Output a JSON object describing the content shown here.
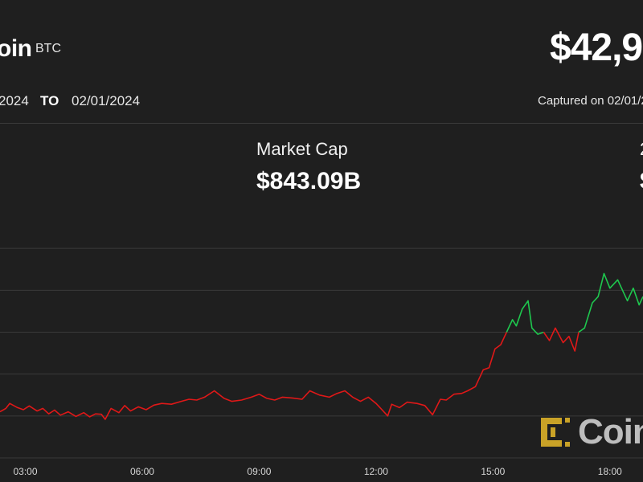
{
  "header": {
    "brand": "oin",
    "ticker": "BTC",
    "price": "$42,9",
    "range_from": "2024",
    "range_to_label": "TO",
    "range_to": "02/01/2024",
    "captured": "Captured on 02/01/2"
  },
  "stats": {
    "market_cap_label": "Market Cap",
    "market_cap_value": "$843.09B",
    "stat2_label": "2",
    "stat2_value": "$"
  },
  "watermark": {
    "text": "Coin"
  },
  "colors": {
    "up": "#1ec74e",
    "down": "#e01818",
    "grid": "#3a3a3a",
    "background": "#1f1f1f",
    "watermark_accent": "#c9a227"
  },
  "chart_data": {
    "type": "line",
    "x_ticks": [
      "03:00",
      "06:00",
      "09:00",
      "12:00",
      "15:00",
      "18:00"
    ],
    "x_tick_hours": [
      3,
      6,
      9,
      12,
      15,
      18
    ],
    "xlim_hours": [
      2.35,
      18.85
    ],
    "ylim": [
      0,
      6
    ],
    "y_gridlines": [
      0,
      1,
      2,
      3,
      4,
      5
    ],
    "grid": true,
    "note_units": "hours of day on x; relative price level on y (axis values not printed)",
    "series": [
      {
        "color_key": "down",
        "x": [
          2.35,
          2.5,
          2.6,
          2.8,
          2.95,
          3.1,
          3.3,
          3.45,
          3.6,
          3.75,
          3.9,
          4.1,
          4.3,
          4.5,
          4.65,
          4.8,
          4.95,
          5.05,
          5.2,
          5.4,
          5.55,
          5.7,
          5.9,
          6.1,
          6.3,
          6.5,
          6.75,
          7.0,
          7.2,
          7.4,
          7.6,
          7.85,
          8.1,
          8.3,
          8.55,
          8.8,
          9.0,
          9.2,
          9.4,
          9.6,
          9.85,
          10.1,
          10.3,
          10.55,
          10.8,
          11.0,
          11.2,
          11.4,
          11.6,
          11.8,
          12.0,
          12.15,
          12.3,
          12.4,
          12.6,
          12.8,
          13.05,
          13.25,
          13.45,
          13.65,
          13.8,
          14.0,
          14.2,
          14.35,
          14.55,
          14.75,
          14.9,
          15.05,
          15.2,
          15.35
        ],
        "y": [
          1.1,
          1.18,
          1.3,
          1.2,
          1.15,
          1.24,
          1.12,
          1.18,
          1.05,
          1.14,
          1.02,
          1.1,
          0.99,
          1.08,
          0.98,
          1.05,
          1.04,
          0.92,
          1.18,
          1.08,
          1.25,
          1.12,
          1.22,
          1.15,
          1.26,
          1.3,
          1.28,
          1.35,
          1.4,
          1.38,
          1.45,
          1.6,
          1.42,
          1.35,
          1.38,
          1.45,
          1.52,
          1.42,
          1.38,
          1.45,
          1.43,
          1.4,
          1.6,
          1.5,
          1.45,
          1.54,
          1.6,
          1.45,
          1.35,
          1.45,
          1.3,
          1.15,
          1.0,
          1.28,
          1.2,
          1.33,
          1.3,
          1.25,
          1.03,
          1.4,
          1.38,
          1.52,
          1.54,
          1.6,
          1.7,
          2.1,
          2.15,
          2.6,
          2.7,
          3.0
        ]
      },
      {
        "color_key": "up",
        "x": [
          15.35,
          15.5,
          15.6,
          15.75,
          15.9,
          16.0,
          16.15,
          16.3
        ],
        "y": [
          3.0,
          3.3,
          3.15,
          3.55,
          3.75,
          3.1,
          2.95,
          3.0
        ]
      },
      {
        "color_key": "down",
        "x": [
          16.3,
          16.45,
          16.6,
          16.8,
          16.95,
          17.1,
          17.2
        ],
        "y": [
          3.0,
          2.8,
          3.1,
          2.75,
          2.9,
          2.55,
          3.0
        ]
      },
      {
        "color_key": "up",
        "x": [
          17.2,
          17.35,
          17.55,
          17.7,
          17.85,
          18.0,
          18.2,
          18.45,
          18.6,
          18.75,
          18.85
        ],
        "y": [
          3.0,
          3.1,
          3.7,
          3.85,
          4.4,
          4.05,
          4.25,
          3.75,
          4.05,
          3.65,
          3.85
        ]
      }
    ]
  }
}
